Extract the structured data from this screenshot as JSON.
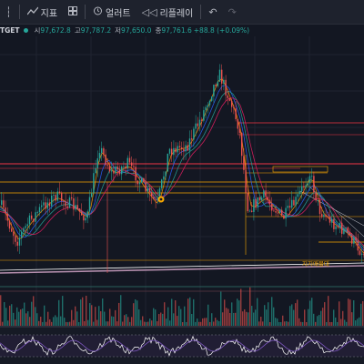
{
  "toolbar": {
    "indicators_label": "지표",
    "alerts_label": "얼러트",
    "replay_label": "리플레이"
  },
  "legend": {
    "symbol": "TGET",
    "open_key": "시",
    "open_val": "97,672.8",
    "high_key": "고",
    "high_val": "97,787.2",
    "low_key": "저",
    "low_val": "97,650.0",
    "close_key": "종",
    "close_val": "97,761.6",
    "change": "+88.8 (+0.09%)"
  },
  "annotation": {
    "zone_label": "지지매물대"
  },
  "colors": {
    "background": "#131722",
    "up": "#26a69a",
    "down": "#ef5350",
    "support_line": "#ffffff",
    "resistance_lines": "#f23645",
    "zone_lines": "#f7a600",
    "highlight_line": "#b48ead"
  }
}
